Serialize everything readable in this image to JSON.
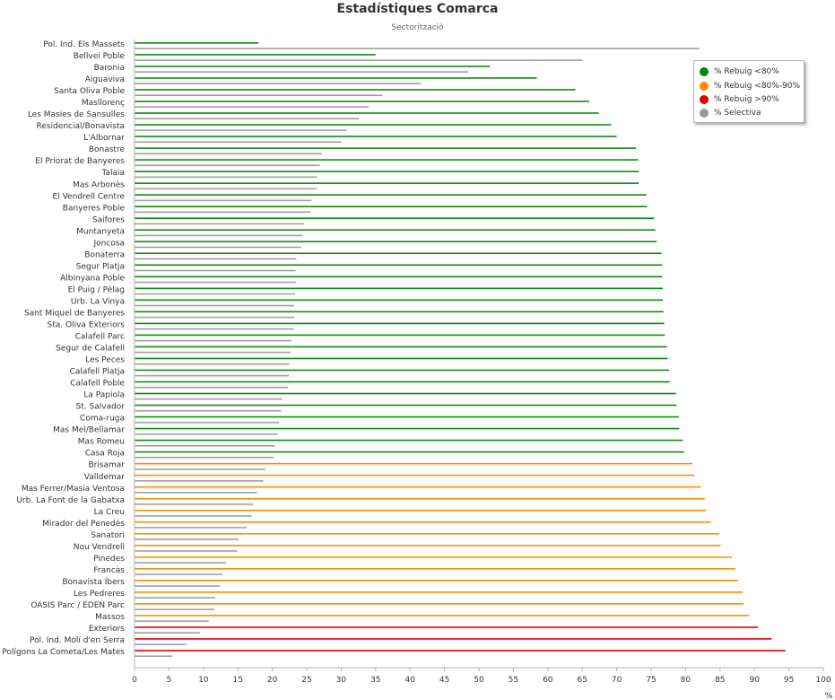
{
  "chart_data": {
    "type": "bar",
    "orientation": "horizontal",
    "title": "Estadístiques Comarca",
    "subtitle": "Sectorització",
    "xlabel": "%",
    "xlim": [
      0,
      100
    ],
    "xticks": [
      0,
      5,
      10,
      15,
      20,
      25,
      30,
      35,
      40,
      45,
      50,
      55,
      60,
      65,
      70,
      75,
      80,
      85,
      90,
      95,
      100
    ],
    "grid": false,
    "legend_position": "top-right",
    "categories": [
      "Pol. Ind. Els Massets",
      "Bellvei Poble",
      "Baronia",
      "Aiguaviva",
      "Santa Oliva Poble",
      "Masllorenç",
      "Les Masies de Sansulles",
      "Residencial/Bonavista",
      "L'Albornar",
      "Bonastre",
      "El Priorat de Banyeres",
      "Talaia",
      "Mas Arbonès",
      "El Vendrell Centre",
      "Banyeres Poble",
      "Saifores",
      "Muntanyeta",
      "Joncosa",
      "Bonaterra",
      "Segur Platja",
      "Albinyana Poble",
      "El Puig / Pèlag",
      "Urb. La Vinya",
      "Sant Miquel de Banyeres",
      "Sta. Oliva Exteriors",
      "Calafell Parc",
      "Segur de Calafell",
      "Les Peces",
      "Calafell Platja",
      "Calafell Poble",
      "La Papiola",
      "St. Salvador",
      "Coma-ruga",
      "Mas Mel/Bellamar",
      "Mas Romeu",
      "Casa Roja",
      "Brisamar",
      "Valldemar",
      "Mas Ferrer/Masia Ventosa",
      "Urb. La Font de la Gabatxa",
      "La Creu",
      "Mirador del Penedès",
      "Sanatori",
      "Nou Vendrell",
      "Pinedes",
      "Francàs",
      "Bonavista Íbers",
      "Les Pedreres",
      "OASIS Parc / EDEN Parc",
      "Massos",
      "Exteriors",
      "Pol. Ind. Molí d'en Serra",
      "Polígons La Cometa/Les Mates"
    ],
    "series": [
      {
        "name": "% Rebuig",
        "values": [
          18,
          35,
          51.6,
          58.4,
          64,
          66,
          67.4,
          69.2,
          70,
          72.8,
          73.1,
          73.2,
          73.2,
          74.3,
          74.4,
          75.4,
          75.6,
          75.8,
          76.5,
          76.6,
          76.6,
          76.7,
          76.7,
          76.8,
          76.9,
          77,
          77.3,
          77.4,
          77.6,
          77.7,
          78.6,
          78.7,
          79,
          79.1,
          79.6,
          79.8,
          81,
          81.3,
          82.2,
          82.8,
          83,
          83.7,
          84.9,
          85.1,
          86.7,
          87.2,
          87.6,
          88.3,
          88.4,
          89.2,
          90.5,
          92.5,
          94.5
        ],
        "color_by_range": {
          "below_80": "#0f8a0f",
          "80_90": "#ff8c00",
          "above_90": "#e00000"
        }
      },
      {
        "name": "% Selectiva",
        "values": [
          82,
          65,
          48.4,
          41.6,
          36,
          34,
          32.6,
          30.8,
          30,
          27.2,
          26.9,
          26.5,
          26.5,
          25.7,
          25.6,
          24.6,
          24.4,
          24.2,
          23.5,
          23.4,
          23.4,
          23.3,
          23.2,
          23.2,
          23.1,
          22.8,
          22.7,
          22.5,
          22.4,
          22.3,
          21.4,
          21.3,
          21,
          20.8,
          20.4,
          20.2,
          19,
          18.7,
          17.8,
          17.2,
          17,
          16.3,
          15.1,
          14.9,
          13.3,
          12.8,
          12.4,
          11.7,
          11.6,
          10.8,
          9.5,
          7.5,
          5.5
        ],
        "color": "#a0a0a0"
      }
    ]
  },
  "legend": {
    "items": [
      {
        "label": "% Rebuig <80%",
        "color": "#008800"
      },
      {
        "label": "% Rebuig <80%-90%",
        "color": "#ff8c00"
      },
      {
        "label": "% Rebuig >90%",
        "color": "#e00000"
      },
      {
        "label": "% Selectiva",
        "color": "#999999"
      }
    ]
  }
}
